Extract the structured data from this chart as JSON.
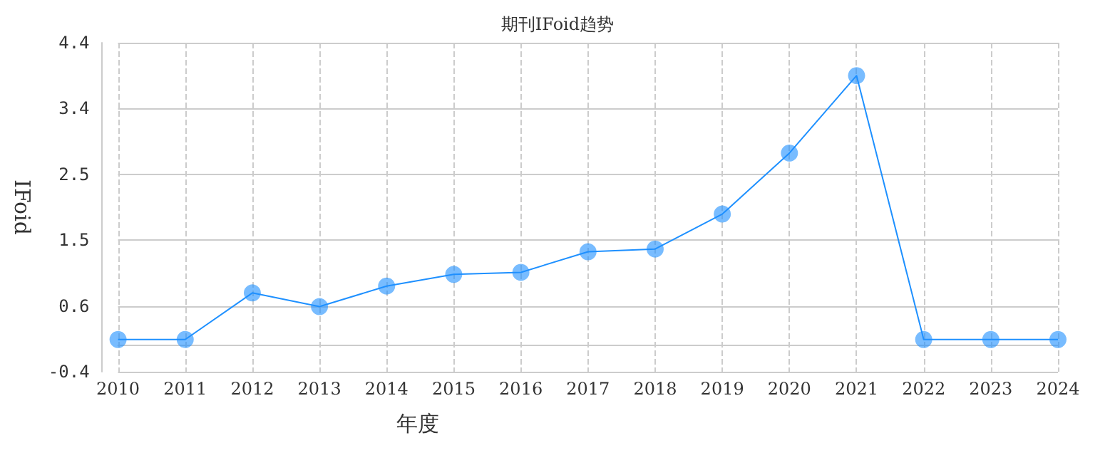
{
  "chart_data": {
    "type": "line",
    "title": "期刊IFoid趋势",
    "xlabel": "年度",
    "ylabel": "IFoid",
    "categories": [
      "2010",
      "2011",
      "2012",
      "2013",
      "2014",
      "2015",
      "2016",
      "2017",
      "2018",
      "2019",
      "2020",
      "2021",
      "2022",
      "2023",
      "2024"
    ],
    "series": [
      {
        "color": "#1e90ff",
        "values": [
          0.07,
          0.07,
          0.75,
          0.55,
          0.85,
          1.02,
          1.05,
          1.35,
          1.39,
          1.9,
          2.79,
          3.92,
          0.07,
          0.07,
          0.07
        ]
      }
    ],
    "ylim": [
      -0.4,
      4.4
    ],
    "yticks": [
      -0.4,
      {
        "value": 0.56,
        "label": "0.6"
      },
      {
        "value": 1.52,
        "label": "1.5"
      },
      {
        "value": 2.48,
        "label": "2.5"
      },
      {
        "value": 3.44,
        "label": "3.4"
      },
      4.4
    ],
    "grid": true,
    "marker": "circle",
    "line_style": "solid"
  }
}
